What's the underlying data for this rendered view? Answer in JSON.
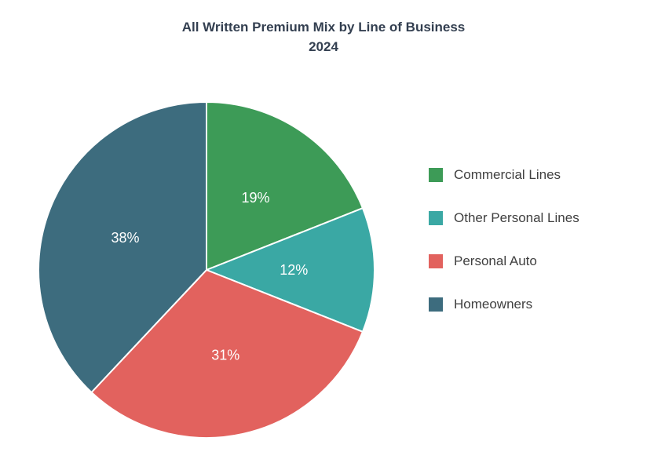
{
  "chart_data": {
    "type": "pie",
    "title": "All Written Premium Mix by Line of Business",
    "subtitle": "2024",
    "categories": [
      "Commercial Lines",
      "Other Personal Lines",
      "Personal Auto",
      "Homeowners"
    ],
    "values": [
      19,
      12,
      31,
      38
    ],
    "value_labels": [
      "19%",
      "12%",
      "31%",
      "38%"
    ],
    "colors": [
      "#3d9b57",
      "#3aa8a4",
      "#e2625e",
      "#3d6c7e"
    ],
    "start_angle_deg": 0,
    "direction": "clockwise",
    "legend_position": "right",
    "slice_label_color": "#ffffff",
    "title_color": "#333f50",
    "legend_text_color": "#404040",
    "background_color": "#ffffff"
  }
}
